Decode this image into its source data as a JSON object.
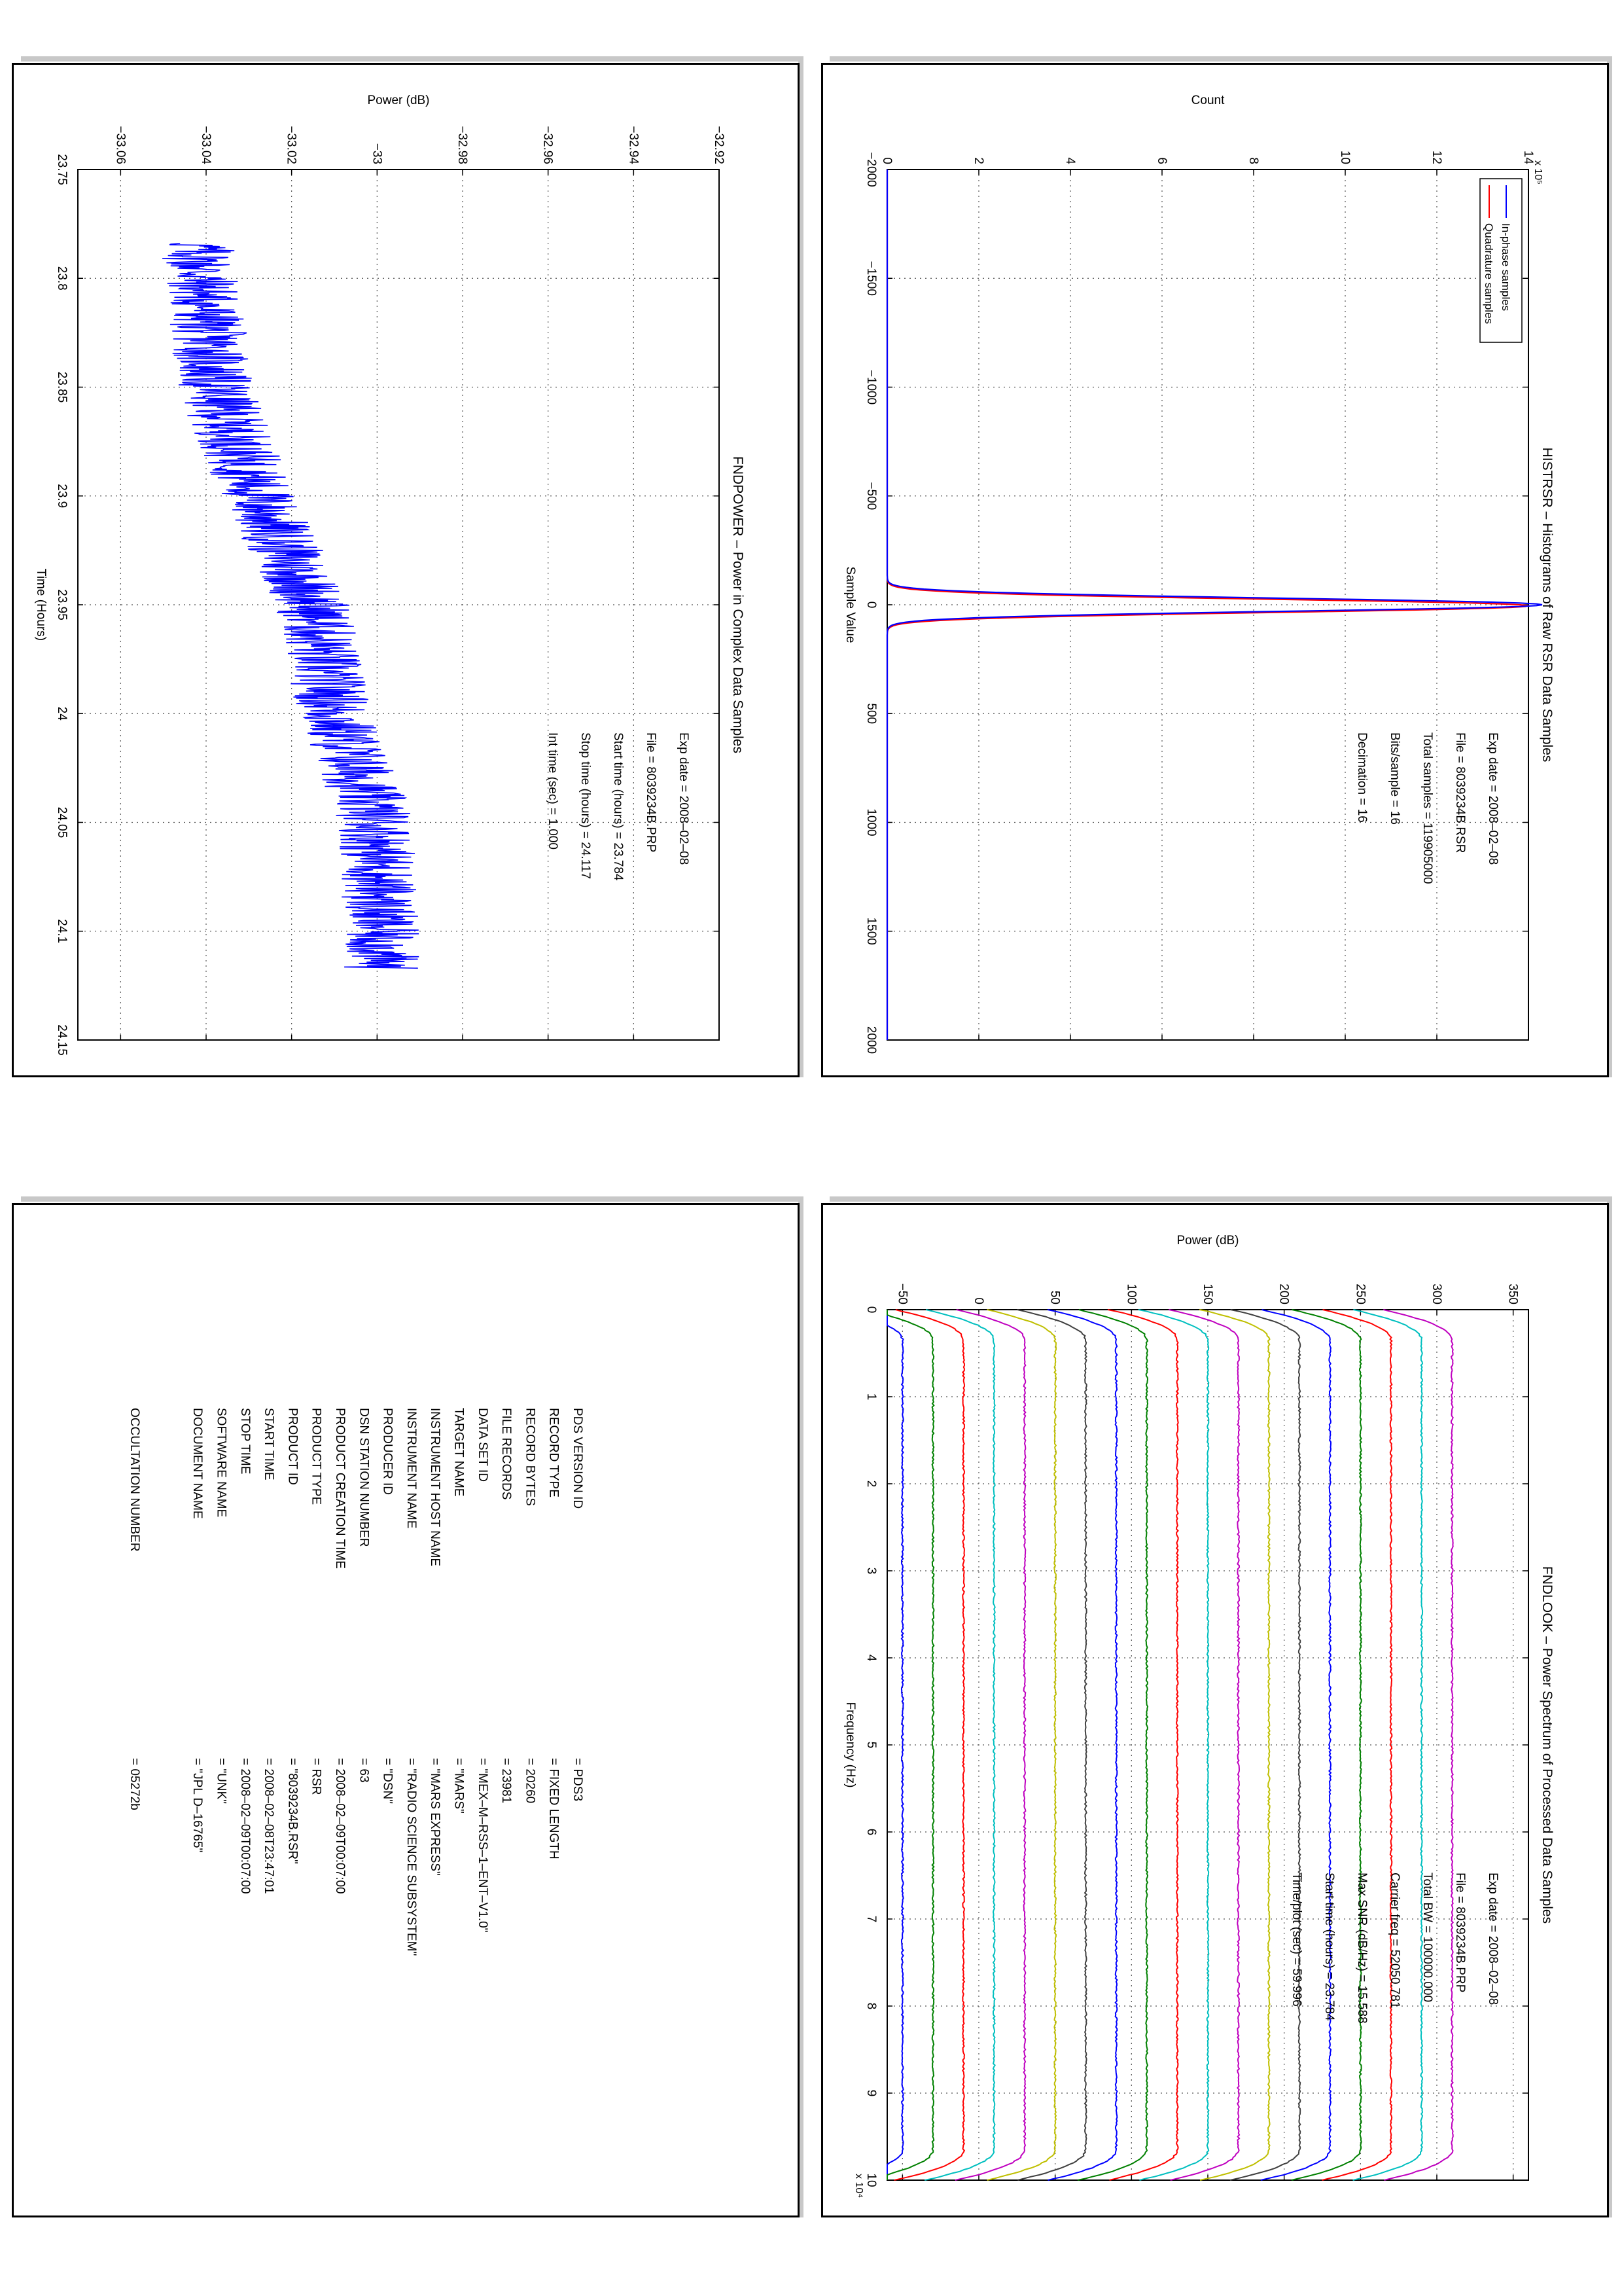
{
  "panels": {
    "histrsr": {
      "chart_data": {
        "type": "line",
        "title": "HISTRSR - Histograms of Raw RSR Data Samples",
        "xlabel": "Sample Value",
        "ylabel": "Count",
        "xlim": [
          -2000,
          2000
        ],
        "ylim": [
          0,
          14
        ],
        "xticks": [
          -2000,
          -1500,
          -1000,
          -500,
          0,
          500,
          1000,
          1500,
          2000
        ],
        "yticks": [
          0,
          2,
          4,
          6,
          8,
          10,
          12,
          14
        ],
        "yexponent": "x 10⁵",
        "grid": true,
        "legend_position": "top-left",
        "series": [
          {
            "name": "In-phase samples",
            "color": "#0000ff",
            "mu": 0,
            "sigma": 30,
            "peak": 14.3
          },
          {
            "name": "Quadrature samples",
            "color": "#ff0000",
            "mu": 5,
            "sigma": 30,
            "peak": 14.0
          }
        ],
        "annotations": [
          {
            "label": "Exp date",
            "value": "2008-02-08"
          },
          {
            "label": "File",
            "value": "8039234B.RSR"
          },
          {
            "label": "Total samples",
            "value": "119905000"
          },
          {
            "label": "Bits/sample",
            "value": "16"
          },
          {
            "label": "Decimation",
            "value": "16"
          }
        ],
        "annotation_text": [
          "Exp date = 2008–02–08",
          "File = 8039234B.RSR",
          "Total samples =  119905000",
          "Bits/sample   =       16",
          "Decimation    =       16"
        ]
      }
    },
    "fndpower": {
      "chart_data": {
        "type": "line",
        "title": "FNDPOWER - Power in Complex Data Samples",
        "xlabel": "Time (Hours)",
        "ylabel": "Power (dB)",
        "xlim": [
          23.75,
          24.15
        ],
        "ylim": [
          -33.07,
          -32.92
        ],
        "xticks": [
          23.75,
          23.8,
          23.85,
          23.9,
          23.95,
          24,
          24.05,
          24.1,
          24.15
        ],
        "yticks": [
          -33.06,
          -33.04,
          -33.02,
          -33,
          -32.98,
          -32.96,
          -32.94,
          -32.92
        ],
        "grid": true,
        "series": [
          {
            "color": "#0000ff",
            "x_start": 23.784,
            "x_end": 24.117,
            "trend": [
              [
                23.784,
                -33.042
              ],
              [
                23.85,
                -33.038
              ],
              [
                23.9,
                -33.028
              ],
              [
                23.95,
                -33.015
              ],
              [
                24.0,
                -33.01
              ],
              [
                24.05,
                -33.0
              ],
              [
                24.117,
                -32.999
              ]
            ],
            "noise": 0.009
          }
        ],
        "annotations": [
          {
            "label": "Exp date",
            "value": "2008-02-08"
          },
          {
            "label": "File",
            "value": "8039234B.PRP"
          },
          {
            "label": "Start time (hours)",
            "value": "23.784"
          },
          {
            "label": "Stop time (hours)",
            "value": "24.117"
          },
          {
            "label": "Int time (sec)",
            "value": "1.000"
          }
        ],
        "annotation_text": [
          "Exp date = 2008–02–08",
          "File = 8039234B.PRP",
          "Start time (hours) = 23.784",
          "Stop time (hours) = 24.117",
          "Int time (sec) =    1.000"
        ]
      }
    },
    "fndlook": {
      "chart_data": {
        "type": "line",
        "title": "FNDLOOK - Power Spectrum of Processed Data Samples",
        "xlabel": "Frequency (Hz)",
        "ylabel": "Power (dB)",
        "xlim": [
          0,
          10
        ],
        "ylim": [
          -60,
          360
        ],
        "xticks": [
          0,
          1,
          2,
          3,
          4,
          5,
          6,
          7,
          8,
          9,
          10
        ],
        "yticks": [
          -50,
          0,
          50,
          100,
          150,
          200,
          250,
          300,
          350
        ],
        "xexponent": "x 10⁴",
        "grid": true,
        "series": [
          {
            "color": "#0000ff",
            "level": -50
          },
          {
            "color": "#008000",
            "level": -30
          },
          {
            "color": "#ff0000",
            "level": -10
          },
          {
            "color": "#00bfbf",
            "level": 10
          },
          {
            "color": "#bf00bf",
            "level": 30
          },
          {
            "color": "#bfbf00",
            "level": 50
          },
          {
            "color": "#404040",
            "level": 70
          },
          {
            "color": "#0000ff",
            "level": 90
          },
          {
            "color": "#008000",
            "level": 110
          },
          {
            "color": "#ff0000",
            "level": 130
          },
          {
            "color": "#00bfbf",
            "level": 150
          },
          {
            "color": "#bf00bf",
            "level": 170
          },
          {
            "color": "#bfbf00",
            "level": 190
          },
          {
            "color": "#404040",
            "level": 210
          },
          {
            "color": "#0000ff",
            "level": 230
          },
          {
            "color": "#008000",
            "level": 250
          },
          {
            "color": "#ff0000",
            "level": 270
          },
          {
            "color": "#00bfbf",
            "level": 290
          },
          {
            "color": "#bf00bf",
            "level": 310
          }
        ],
        "annotations": [
          {
            "label": "Exp date",
            "value": "2008-02-08"
          },
          {
            "label": "File",
            "value": "8039234B.PRP"
          },
          {
            "label": "Total BW",
            "value": "100000.000"
          },
          {
            "label": "Carrier freq",
            "value": "52050.781"
          },
          {
            "label": "Max SNR (dB/Hz)",
            "value": "15.588"
          },
          {
            "label": "Start time (hours)",
            "value": "23.784"
          },
          {
            "label": "Time/plot (sec)",
            "value": "59.996"
          }
        ],
        "annotation_text": [
          "Exp date = 2008–02–08",
          "File = 8039234B.PRP",
          "Total BW =      100000.000",
          "Carrier freq =    52050.781",
          "Max SNR (dB/Hz) =     15.588",
          "Start time (hours) =   23.784",
          "Time/plot (sec) =     59.996"
        ]
      }
    },
    "label": {
      "rows": [
        {
          "key": "PDS VERSION ID",
          "value": "= PDS3"
        },
        {
          "key": "RECORD TYPE",
          "value": "= FIXED LENGTH"
        },
        {
          "key": "RECORD BYTES",
          "value": "= 20260"
        },
        {
          "key": "FILE RECORDS",
          "value": "= 23981"
        },
        {
          "key": "DATA SET ID",
          "value": "= \"MEX–M–RSS–1–ENT–V1.0\""
        },
        {
          "key": "TARGET NAME",
          "value": "= \"MARS\""
        },
        {
          "key": "INSTRUMENT HOST NAME",
          "value": "= \"MARS EXPRESS\""
        },
        {
          "key": "INSTRUMENT NAME",
          "value": "= \"RADIO SCIENCE SUBSYSTEM\""
        },
        {
          "key": "PRODUCER ID",
          "value": "= \"DSN\""
        },
        {
          "key": "DSN STATION NUMBER",
          "value": "= 63"
        },
        {
          "key": "PRODUCT CREATION TIME",
          "value": "= 2008–02–09T00:07:00"
        },
        {
          "key": "PRODUCT TYPE",
          "value": "= RSR"
        },
        {
          "key": "PRODUCT ID",
          "value": "= \"8039234B.RSR\""
        },
        {
          "key": "START TIME",
          "value": "= 2008–02–08T23:47:01"
        },
        {
          "key": "STOP TIME",
          "value": "= 2008–02–09T00:07:00"
        },
        {
          "key": "SOFTWARE NAME",
          "value": "= \"UNK\""
        },
        {
          "key": "DOCUMENT NAME",
          "value": "= \"JPL D–16765\""
        },
        {
          "key": "OCCULTATION NUMBER",
          "value": "= 05272b"
        }
      ]
    }
  }
}
